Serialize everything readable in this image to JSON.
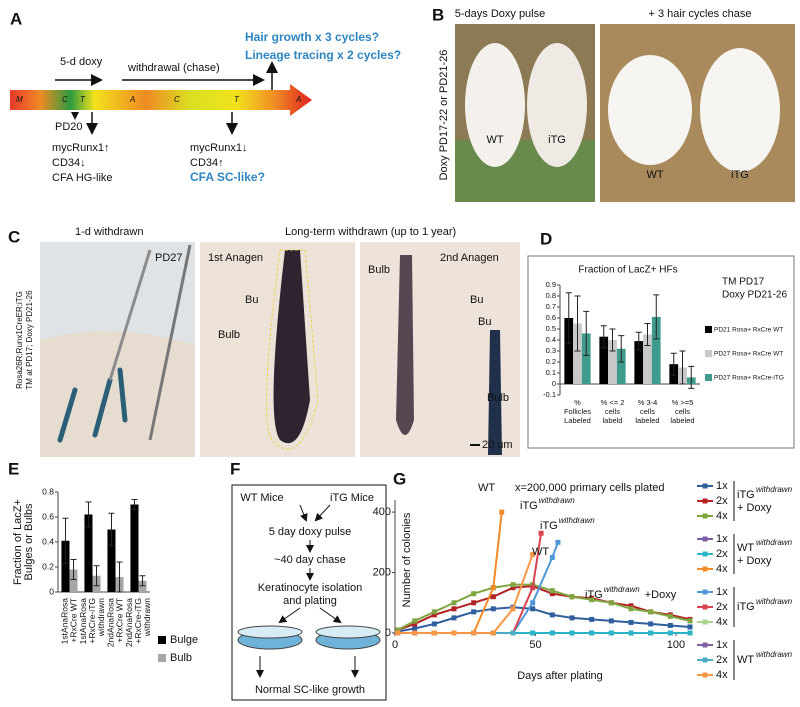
{
  "panel_labels": [
    "A",
    "B",
    "C",
    "D",
    "E",
    "F",
    "G"
  ],
  "panel_a": {
    "question_1": "Hair growth x 3 cycles?",
    "question_2": "Lineage tracing x 2 cycles?",
    "pulse": "5-d doxy",
    "chase": "withdrawal (chase)",
    "stages": [
      "M",
      "C",
      "T",
      "A",
      "C",
      "T",
      "A"
    ],
    "start": "PD20",
    "early_markers": [
      "mycRunx1↑",
      "CD34↓",
      "CFA HG-like"
    ],
    "late_markers": [
      "mycRunx1↓",
      "CD34↑",
      "CFA SC-like?"
    ]
  },
  "panel_b": {
    "side_label": "Doxy PD17-22 or PD21-26",
    "photos": [
      {
        "caption": "5-days Doxy pulse",
        "mice": [
          "WT",
          "iTG"
        ]
      },
      {
        "caption": "+ 3 hair cycles chase",
        "mice": [
          "WT",
          "iTG"
        ]
      }
    ]
  },
  "panel_c": {
    "side_label": [
      "Rosa26R;Runx1CreER;iTG",
      "TM at PD17; Doxy PD21-26"
    ],
    "caption_1": "1-d withdrawn",
    "caption_2": "Long-term withdrawn (up to 1 year)",
    "photo_labels": [
      "PD27",
      "1st Anagen",
      "2nd Anagen"
    ],
    "structure_labels": [
      "Bu",
      "Bulb",
      "Bulb",
      "Bu",
      "Bu",
      "Bulb"
    ],
    "scale_bar": "20 um"
  },
  "chart_data": [
    {
      "type": "bar",
      "title": "Fraction of LacZ+ HFs",
      "note": [
        "TM PD17",
        "Doxy PD21-26"
      ],
      "categories": [
        [
          "%",
          "Follicles",
          "Labeled"
        ],
        [
          "% <= 2",
          "cells",
          "labeld"
        ],
        [
          "% 3-4",
          "cells",
          "labeled"
        ],
        [
          "% >=5",
          "cells",
          "labeled"
        ]
      ],
      "series": [
        {
          "name": "PD21 Rosa+ RxCre WT",
          "color": "#000000",
          "values": [
            0.6,
            0.43,
            0.39,
            0.18
          ],
          "errors": [
            0.23,
            0.1,
            0.08,
            0.1
          ]
        },
        {
          "name": "PD27 Rosa+ RxCre WT",
          "color": "#c8c8c8",
          "values": [
            0.55,
            0.4,
            0.45,
            0.15
          ],
          "errors": [
            0.25,
            0.1,
            0.1,
            0.15
          ]
        },
        {
          "name": "PD27 Rosa+ RxCre-iTG",
          "color": "#3f9b8c",
          "values": [
            0.46,
            0.32,
            0.61,
            0.06
          ],
          "errors": [
            0.2,
            0.12,
            0.2,
            0.1
          ]
        }
      ],
      "ylim": [
        -0.1,
        0.9
      ],
      "yticks": [
        -0.1,
        0,
        0.1,
        0.2,
        0.3,
        0.4,
        0.5,
        0.6,
        0.7,
        0.8,
        0.9
      ]
    },
    {
      "type": "bar",
      "ylabel": [
        "Fraction of LacZ+",
        "Bulges or Bulbs"
      ],
      "categories": [
        [
          "1stAnaRosa",
          "+RxCre WT"
        ],
        [
          "1stAnaRosa",
          "+RxCre-iTG",
          "withdrawn"
        ],
        [
          "2ndAnaRosa",
          "+RxCre WT"
        ],
        [
          "2ndAnaRosa",
          "+RxCre-iTG",
          "withdrawn"
        ]
      ],
      "series": [
        {
          "name": "Bulge",
          "color": "#000000",
          "values": [
            0.41,
            0.62,
            0.5,
            0.7
          ],
          "errors": [
            0.18,
            0.1,
            0.13,
            0.04
          ]
        },
        {
          "name": "Bulb",
          "color": "#a6a6a6",
          "values": [
            0.18,
            0.13,
            0.12,
            0.09
          ],
          "errors": [
            0.08,
            0.08,
            0.12,
            0.04
          ]
        }
      ],
      "ylim": [
        0,
        0.8
      ],
      "yticks": [
        0,
        0.2,
        0.4,
        0.6,
        0.8
      ]
    },
    {
      "type": "line",
      "note": "x=200,000 primary cells plated",
      "xlabel": "Days after plating",
      "ylabel": "Number of colonies",
      "xlim": [
        0,
        105
      ],
      "xticks": [
        0,
        50,
        100
      ],
      "ylim": [
        0,
        440
      ],
      "yticks": [
        0,
        200,
        400
      ],
      "groups": [
        {
          "label": "iTG",
          "sup": "withdrawn",
          "extra": "+ Doxy",
          "series": [
            {
              "name": "1x",
              "color": "#2f5f9e",
              "x": [
                1,
                7,
                14,
                21,
                28,
                35,
                42,
                49,
                56,
                63,
                70,
                77,
                84,
                91,
                98,
                105
              ],
              "values": [
                5,
                15,
                30,
                50,
                70,
                80,
                85,
                80,
                60,
                50,
                45,
                40,
                35,
                30,
                25,
                20
              ]
            },
            {
              "name": "2x",
              "color": "#b22222",
              "x": [
                1,
                7,
                14,
                21,
                28,
                35,
                42,
                49,
                56,
                63,
                70,
                77,
                84,
                91,
                98,
                105
              ],
              "values": [
                10,
                30,
                60,
                80,
                100,
                120,
                150,
                155,
                130,
                120,
                115,
                100,
                90,
                70,
                60,
                45
              ]
            },
            {
              "name": "4x",
              "color": "#7fa641",
              "x": [
                1,
                7,
                14,
                21,
                28,
                35,
                42,
                49,
                56,
                63,
                70,
                77,
                84,
                91,
                98,
                105
              ],
              "values": [
                10,
                40,
                70,
                100,
                130,
                150,
                160,
                160,
                140,
                120,
                110,
                100,
                80,
                70,
                55,
                40
              ]
            }
          ]
        },
        {
          "label": "WT",
          "sup": "withdrawn",
          "extra": "+ Doxy",
          "series": [
            {
              "name": "1x",
              "color": "#7a5ca8",
              "x": [
                1,
                7,
                14,
                21,
                28,
                35,
                42,
                49,
                56,
                63,
                70,
                77,
                84,
                91,
                98,
                105
              ],
              "values": [
                0,
                0,
                0,
                0,
                0,
                0,
                0,
                0,
                0,
                0,
                0,
                0,
                0,
                0,
                0,
                0
              ]
            },
            {
              "name": "2x",
              "color": "#2bb3c9",
              "x": [
                1,
                7,
                14,
                21,
                28,
                35,
                42,
                49,
                56,
                63,
                70,
                77,
                84,
                91,
                98,
                105
              ],
              "values": [
                0,
                0,
                0,
                0,
                0,
                0,
                0,
                0,
                0,
                0,
                0,
                0,
                0,
                0,
                0,
                0
              ]
            },
            {
              "name": "4x",
              "color": "#f28c28",
              "x": [
                1,
                7,
                14,
                21,
                28,
                35,
                38
              ],
              "values": [
                0,
                0,
                0,
                0,
                0,
                150,
                400
              ]
            }
          ]
        },
        {
          "label": "iTG",
          "sup": "withdrawn",
          "series": [
            {
              "name": "1x",
              "color": "#4f97d8",
              "x": [
                1,
                7,
                14,
                21,
                28,
                35,
                42,
                49,
                56,
                58
              ],
              "values": [
                0,
                0,
                0,
                0,
                0,
                0,
                0,
                100,
                250,
                300
              ]
            },
            {
              "name": "2x",
              "color": "#d9434f",
              "x": [
                1,
                7,
                14,
                21,
                28,
                35,
                42,
                49,
                52
              ],
              "values": [
                0,
                0,
                0,
                0,
                0,
                0,
                0,
                150,
                330
              ]
            },
            {
              "name": "4x",
              "color": "#a9d18e",
              "x": [
                1,
                7,
                14,
                21,
                28,
                35,
                42
              ],
              "values": [
                0,
                0,
                0,
                0,
                0,
                0,
                0
              ]
            }
          ]
        },
        {
          "label": "WT",
          "sup": "withdrawn",
          "series": [
            {
              "name": "1x",
              "color": "#8064a2",
              "x": [
                1,
                7,
                14,
                21,
                28,
                35,
                42
              ],
              "values": [
                0,
                0,
                0,
                0,
                0,
                0,
                0
              ]
            },
            {
              "name": "2x",
              "color": "#4bacc6",
              "x": [
                1,
                7,
                14,
                21,
                28,
                35,
                42
              ],
              "values": [
                0,
                0,
                0,
                0,
                0,
                0,
                0
              ]
            },
            {
              "name": "4x",
              "color": "#f79646",
              "x": [
                1,
                7,
                14,
                21,
                28,
                35,
                42,
                49
              ],
              "values": [
                0,
                0,
                0,
                0,
                0,
                0,
                80,
                260
              ]
            }
          ]
        }
      ],
      "annotations": [
        {
          "text": "WT"
        },
        {
          "text": "iTG",
          "sup": "withdrawn"
        },
        {
          "text": "iTG",
          "sup": "withdrawn"
        },
        {
          "text": "WT"
        },
        {
          "text": "iTG",
          "sup": "withdrawn",
          "extra": "+Doxy"
        }
      ]
    }
  ],
  "panel_f": {
    "groups": [
      "WT Mice",
      "iTG Mice"
    ],
    "steps": [
      "5 day doxy pulse",
      "~40 day chase",
      "Keratinocyte isolation",
      "and plating"
    ],
    "outcome": "Normal SC-like growth"
  }
}
